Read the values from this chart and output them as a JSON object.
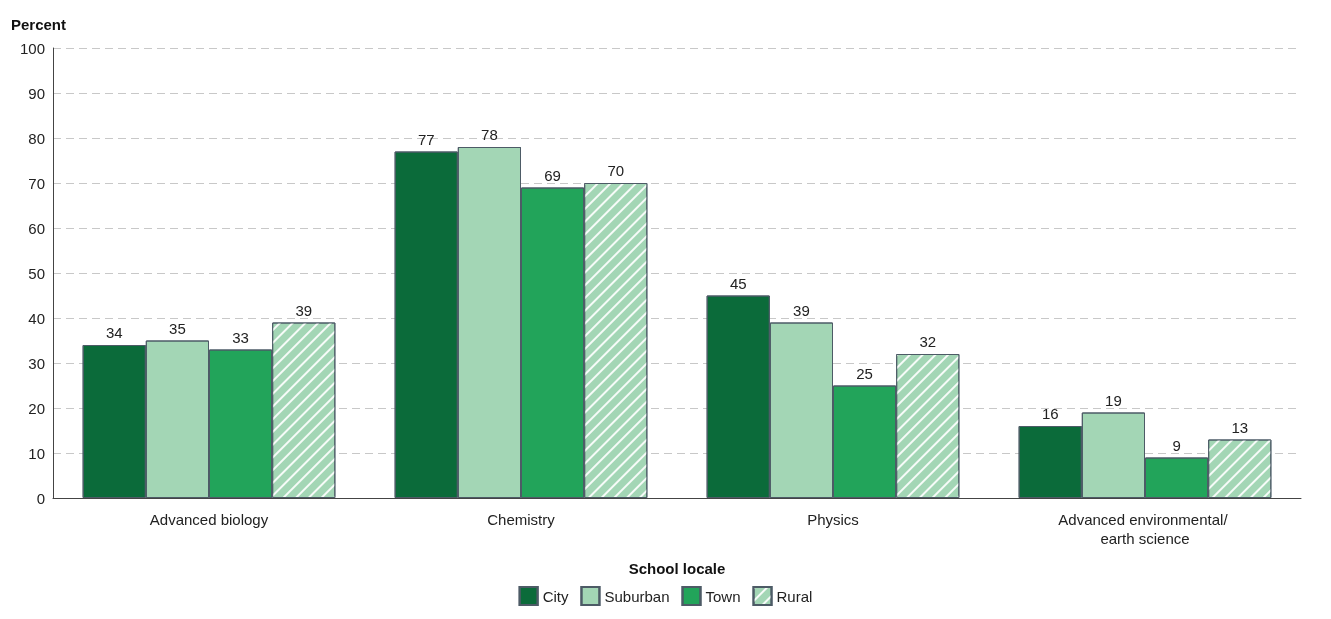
{
  "chart_data": {
    "type": "bar",
    "ylabel": "Percent",
    "xlabel": "School locale",
    "categories": [
      "Advanced biology",
      "Chemistry",
      "Physics",
      "Advanced environmental/ earth science"
    ],
    "series": [
      {
        "name": "City",
        "color": "#0b6b3a",
        "values": [
          34,
          77,
          45,
          16
        ]
      },
      {
        "name": "Suburban",
        "color": "#a3d6b5",
        "values": [
          35,
          78,
          39,
          19
        ]
      },
      {
        "name": "Town",
        "color": "#22a45a",
        "values": [
          33,
          69,
          25,
          9
        ]
      },
      {
        "name": "Rural",
        "color": "#a3d6b5",
        "values": [
          39,
          70,
          32,
          13
        ]
      }
    ],
    "ylim": [
      0,
      100
    ],
    "yticks": [
      0,
      10,
      20,
      30,
      40,
      50,
      60,
      70,
      80,
      90,
      100
    ],
    "grid": "y",
    "legend": "bottom",
    "data_labels": true
  }
}
